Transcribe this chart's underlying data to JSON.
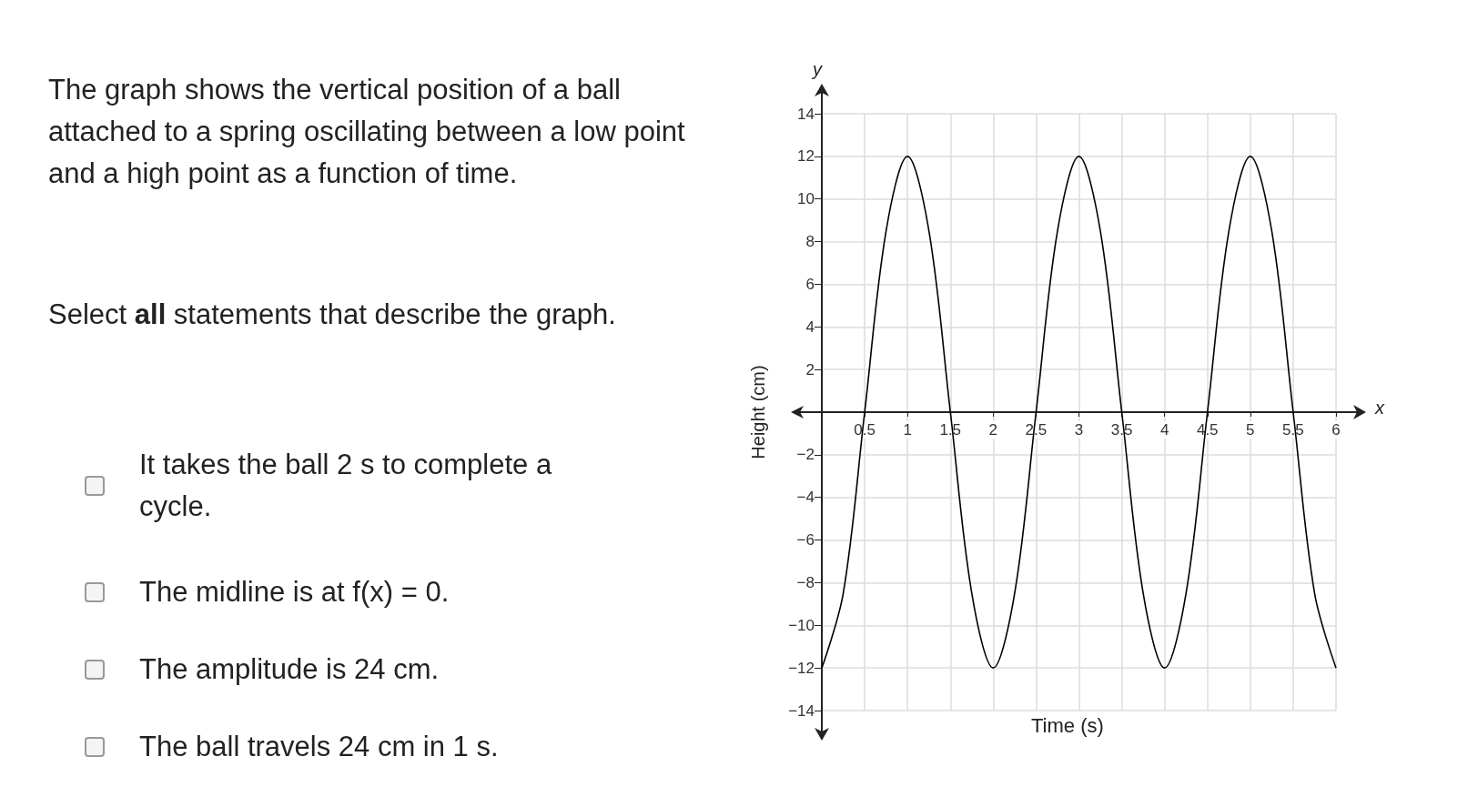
{
  "chart_data": {
    "type": "line",
    "title": "The graph shows the vertical position of a ball attached to a spring oscillating between a low point and a high point as a function of time.",
    "subtitle": "Select **all** statements that describe the graph.",
    "xlabel": "Time (s)",
    "ylabel": "Height (cm)",
    "annotations": [
      "It takes the ball 2 s to complete a cycle.",
      "The midline is at f(x) = 0.",
      "The amplitude is 24 cm.",
      "The ball travels 24 cm in 1 s.",
      "y",
      "x"
    ],
    "x": [
      0,
      0.25,
      0.5,
      0.75,
      1,
      1.25,
      1.5,
      1.75,
      2,
      2.25,
      2.5,
      2.75,
      3,
      3.25,
      3.5,
      3.75,
      4,
      4.25,
      4.5,
      4.75,
      5,
      5.25,
      5.5,
      5.75,
      6
    ],
    "series": [
      {
        "color": "#000000",
        "values": [
          -12,
          -8.5,
          0,
          8.5,
          12,
          8.5,
          0,
          -8.5,
          -12,
          -8.5,
          0,
          8.5,
          12,
          8.5,
          0,
          -8.5,
          -12,
          -8.5,
          0,
          8.5,
          12,
          8.5,
          0,
          -8.5,
          -12
        ]
      }
    ],
    "xlim": [
      0,
      6
    ],
    "xticks": [
      0.5,
      1,
      1.5,
      2,
      2.5,
      3,
      3.5,
      4,
      4.5,
      5,
      5.5,
      6
    ],
    "ylim": [
      -14,
      14
    ],
    "yticks": [
      {
        "value": -14,
        "label": "−14"
      },
      {
        "value": -12,
        "label": "−12"
      },
      {
        "value": -10,
        "label": "−10"
      },
      {
        "value": -8,
        "label": "−8"
      },
      {
        "value": -6,
        "label": "−6"
      },
      {
        "value": -4,
        "label": "−4"
      },
      {
        "value": -2,
        "label": "−2"
      },
      2,
      4,
      6,
      8,
      10,
      12,
      14
    ],
    "grid": true,
    "marker": "none",
    "line_style": "solid"
  }
}
